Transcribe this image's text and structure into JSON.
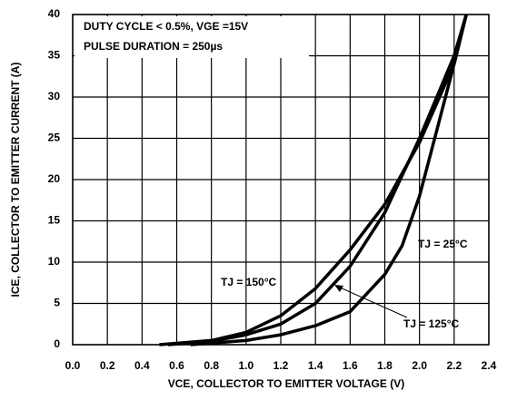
{
  "chart_data": {
    "type": "line",
    "xlabel": "VCE, COLLECTOR TO EMITTER VOLTAGE (V)",
    "ylabel": "ICE, COLLECTOR TO EMITTER CURRENT (A)",
    "annotations": [
      "DUTY CYCLE < 0.5%, VGE =15V",
      "PULSE DURATION = 250µs"
    ],
    "xlim": [
      0,
      2.4
    ],
    "xticks": [
      {
        "value": 0,
        "label": "0.0"
      },
      0.2,
      0.4,
      0.6,
      0.8,
      {
        "value": 1,
        "label": "1.0"
      },
      1.2,
      1.4,
      1.6,
      1.8,
      {
        "value": 2,
        "label": "2.0"
      },
      2.2,
      2.4
    ],
    "ylim": [
      0,
      40
    ],
    "yticks": [
      0,
      5,
      10,
      15,
      20,
      25,
      30,
      35,
      40
    ],
    "grid": true,
    "series": [
      {
        "name": "TJ = 25°C",
        "color": "#000000",
        "x": [
          0.68,
          1.0,
          1.2,
          1.4,
          1.6,
          1.8,
          1.9,
          2.0,
          2.1,
          2.2,
          2.27
        ],
        "values": [
          0,
          0.5,
          1.2,
          2.3,
          4,
          8.5,
          12,
          18,
          26,
          34,
          40
        ]
      },
      {
        "name": "TJ = 150°C",
        "color": "#000000",
        "x": [
          0.5,
          0.8,
          1.0,
          1.2,
          1.4,
          1.6,
          1.8,
          2.0,
          2.2,
          2.27
        ],
        "values": [
          0,
          0.5,
          1.5,
          3.5,
          6.8,
          11.5,
          17,
          24.5,
          34,
          40
        ]
      },
      {
        "name": "TJ = 125°C",
        "color": "#000000",
        "x": [
          0.55,
          0.8,
          1.0,
          1.2,
          1.4,
          1.6,
          1.8,
          2.0,
          2.2,
          2.27
        ],
        "values": [
          0,
          0.4,
          1.2,
          2.5,
          5,
          9.5,
          16,
          25,
          35,
          40
        ]
      }
    ]
  }
}
